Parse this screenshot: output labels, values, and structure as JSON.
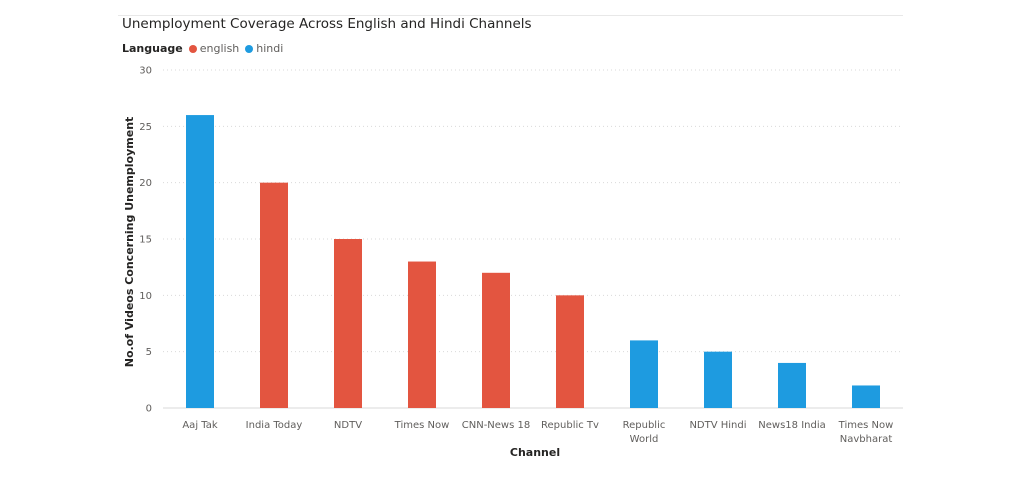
{
  "colors": {
    "english": "#e35540",
    "hindi": "#1e9be0"
  },
  "chart_data": {
    "type": "bar",
    "title": "Unemployment Coverage Across English and Hindi Channels",
    "legend": {
      "title": "Language",
      "position": "top-left",
      "entries": [
        {
          "name": "english",
          "color": "#e35540"
        },
        {
          "name": "hindi",
          "color": "#1e9be0"
        }
      ]
    },
    "categories": [
      "Aaj Tak",
      "India Today",
      "NDTV",
      "Times Now",
      "CNN-News 18",
      "Republic Tv",
      "Republic World",
      "NDTV Hindi",
      "News18 India",
      "Times Now Navbharat"
    ],
    "category_label_lines": [
      [
        "Aaj Tak"
      ],
      [
        "India Today"
      ],
      [
        "NDTV"
      ],
      [
        "Times Now"
      ],
      [
        "CNN-News 18"
      ],
      [
        "Republic Tv"
      ],
      [
        "Republic",
        "World"
      ],
      [
        "NDTV Hindi"
      ],
      [
        "News18 India"
      ],
      [
        "Times Now",
        "Navbharat"
      ]
    ],
    "series": [
      {
        "name": "english",
        "color": "#e35540",
        "values": [
          null,
          20,
          15,
          13,
          12,
          10,
          null,
          null,
          null,
          null
        ]
      },
      {
        "name": "hindi",
        "color": "#1e9be0",
        "values": [
          26,
          null,
          null,
          null,
          null,
          null,
          6,
          5,
          4,
          2
        ]
      }
    ],
    "xlabel": "Channel",
    "ylabel": "No.of Videos Concerning Unemployment",
    "ylim": [
      0,
      30
    ],
    "yticks": [
      0,
      5,
      10,
      15,
      20,
      25,
      30
    ],
    "grid": true
  }
}
